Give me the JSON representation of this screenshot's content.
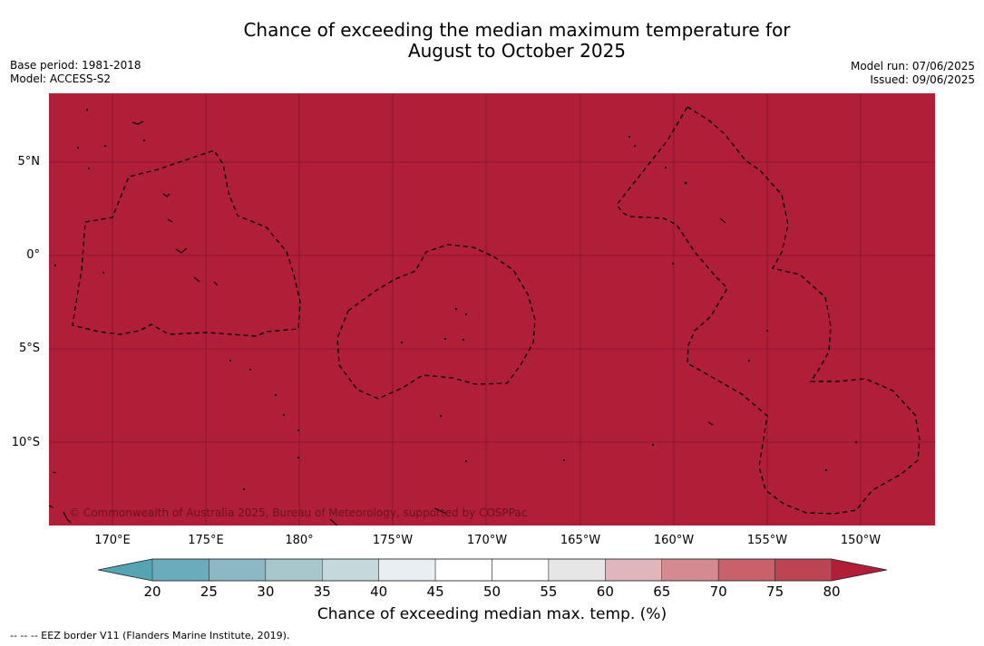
{
  "title_line1": "Chance of exceeding the median maximum temperature for",
  "title_line2": "August to October 2025",
  "base_period": "Base period: 1981-2018",
  "model": "Model: ACCESS-S2",
  "model_run": "Model run: 07/06/2025",
  "issued": "Issued: 09/06/2025",
  "latitude_labels": [
    "5°N",
    "0°",
    "5°S",
    "10°S"
  ],
  "longitude_labels": [
    "170°E",
    "175°E",
    "180°",
    "175°W",
    "170°W",
    "165°W",
    "160°W",
    "155°W",
    "150°W"
  ],
  "credit": "© Commonwealth of Australia 2025, Bureau of Meteorology, supported by COSPPac",
  "colorbar": {
    "ticks": [
      "20",
      "25",
      "30",
      "35",
      "40",
      "45",
      "50",
      "55",
      "60",
      "65",
      "70",
      "75",
      "80"
    ],
    "colors": [
      "#6aacbc",
      "#8bb8c4",
      "#a8c7cc",
      "#c5d9dd",
      "#e8eef1",
      "#ffffff",
      "#ffffff",
      "#e6e6e6",
      "#e0b6ba",
      "#d48a90",
      "#c8616a",
      "#bd4452"
    ],
    "under_color": "#54a4b4",
    "over_color": "#b01e38",
    "label": "Chance of exceeding median max. temp. (%)"
  },
  "map_fill_color": "#b11e38",
  "footnote": "--  --  -- EEZ border V11 (Flanders Marine Institute, 2019)."
}
